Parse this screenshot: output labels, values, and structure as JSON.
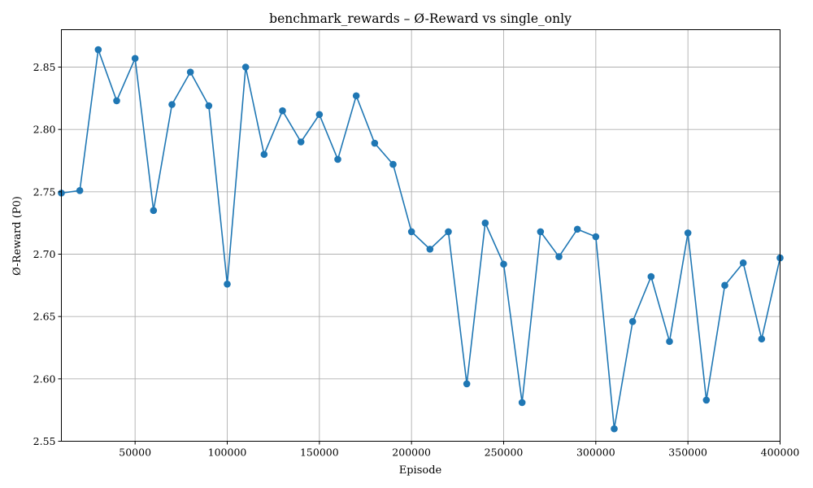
{
  "chart_data": {
    "type": "line",
    "title": "benchmark_rewards – Ø-Reward vs single_only",
    "xlabel": "Episode",
    "ylabel": "Ø-Reward (P0)",
    "xlim": [
      10000,
      400000
    ],
    "ylim": [
      2.55,
      2.88
    ],
    "xticks": [
      50000,
      100000,
      150000,
      200000,
      250000,
      300000,
      350000,
      400000
    ],
    "xtick_labels": [
      "50000",
      "100000",
      "150000",
      "200000",
      "250000",
      "300000",
      "350000",
      "400000"
    ],
    "yticks": [
      2.55,
      2.6,
      2.65,
      2.7,
      2.75,
      2.8,
      2.85
    ],
    "ytick_labels": [
      "2.55",
      "2.60",
      "2.65",
      "2.70",
      "2.75",
      "2.80",
      "2.85"
    ],
    "grid": true,
    "color": "#1f77b4",
    "x": [
      10000,
      20000,
      30000,
      40000,
      50000,
      60000,
      70000,
      80000,
      90000,
      100000,
      110000,
      120000,
      130000,
      140000,
      150000,
      160000,
      170000,
      180000,
      190000,
      200000,
      210000,
      220000,
      230000,
      240000,
      250000,
      260000,
      270000,
      280000,
      290000,
      300000,
      310000,
      320000,
      330000,
      340000,
      350000,
      360000,
      370000,
      380000,
      390000,
      400000
    ],
    "values": [
      2.749,
      2.751,
      2.864,
      2.823,
      2.857,
      2.735,
      2.82,
      2.846,
      2.819,
      2.676,
      2.85,
      2.78,
      2.815,
      2.79,
      2.812,
      2.776,
      2.827,
      2.789,
      2.772,
      2.718,
      2.704,
      2.718,
      2.596,
      2.725,
      2.692,
      2.581,
      2.718,
      2.698,
      2.72,
      2.714,
      2.56,
      2.646,
      2.682,
      2.63,
      2.717,
      2.583,
      2.675,
      2.693,
      2.632,
      2.697
    ]
  }
}
